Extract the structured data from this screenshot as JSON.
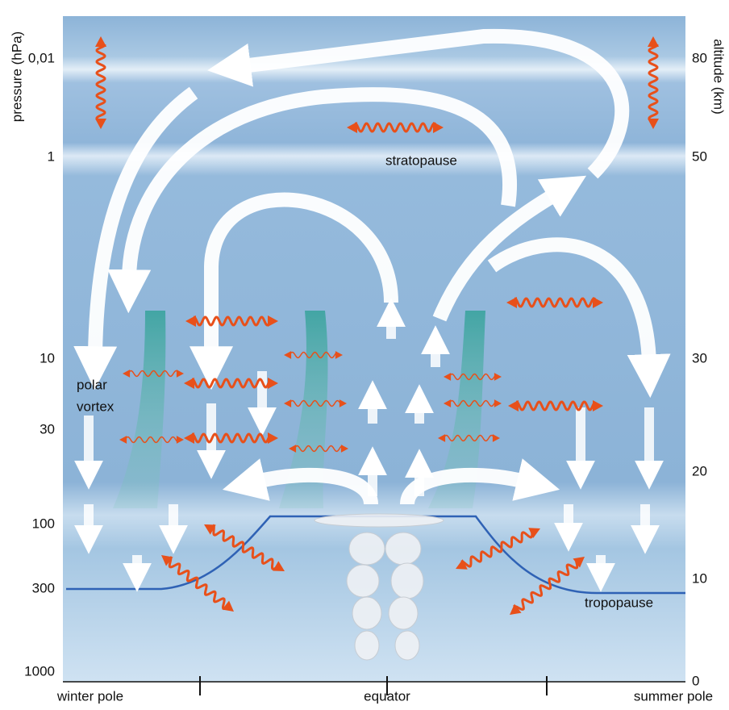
{
  "left_axis": {
    "title": "pressure (hPa)",
    "ticks": [
      "0,01",
      "1",
      "10",
      "30",
      "100",
      "300",
      "1000"
    ]
  },
  "right_axis": {
    "title": "altitude (km)",
    "ticks": [
      "80",
      "50",
      "30",
      "20",
      "10",
      "0"
    ]
  },
  "bottom_labels": [
    "winter pole",
    "equator",
    "summer pole"
  ],
  "labels": {
    "stratopause": "stratopause",
    "polar_vortex": [
      "polar",
      "vortex"
    ],
    "tropopause": "tropopause"
  }
}
